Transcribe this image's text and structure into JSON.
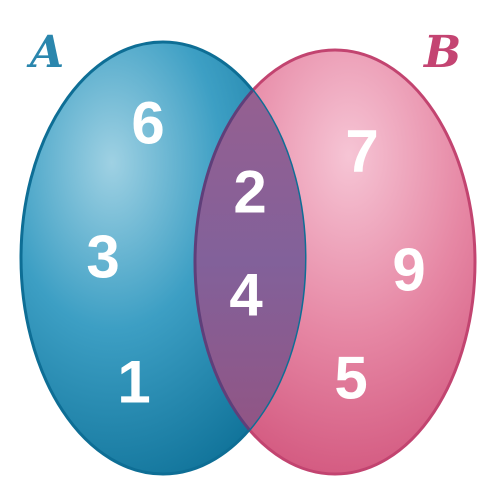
{
  "sets": {
    "a": {
      "label": "A",
      "color": "#1e8fb5",
      "only_elements": [
        "6",
        "3",
        "1"
      ]
    },
    "b": {
      "label": "B",
      "color": "#e17898",
      "only_elements": [
        "7",
        "9",
        "5"
      ]
    },
    "intersection": {
      "color": "#7e5d98",
      "elements": [
        "2",
        "4"
      ]
    }
  }
}
